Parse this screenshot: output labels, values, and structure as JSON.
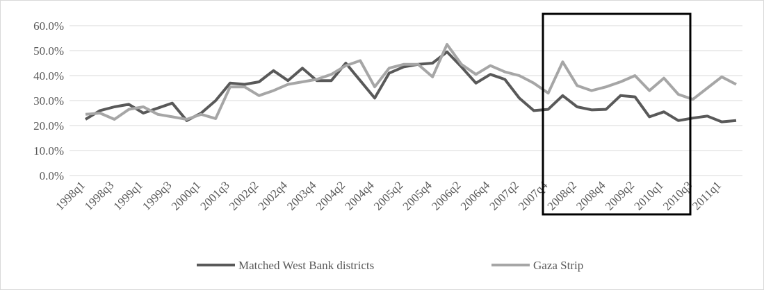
{
  "chart_data": {
    "type": "line",
    "categories": [
      "1998q1",
      null,
      "1998q3",
      null,
      "1999q1",
      null,
      "1999q3",
      null,
      "2000q1",
      null,
      "2001q3",
      null,
      "2002q2",
      null,
      "2002q4",
      null,
      "2003q4",
      null,
      "2004q2",
      null,
      "2004q4",
      null,
      "2005q2",
      null,
      "2005q4",
      null,
      "2006q2",
      null,
      "2006q4",
      null,
      "2007q2",
      null,
      "2007q4",
      null,
      "2008q2",
      null,
      "2008q4",
      null,
      "2009q2",
      null,
      "2010q1",
      null,
      "2010q3",
      null,
      "2011q1",
      null
    ],
    "series": [
      {
        "name": "Matched West Bank districts",
        "color": "#595959",
        "values": [
          22.5,
          26,
          27.5,
          28.5,
          25,
          27,
          29,
          22,
          25,
          30,
          37,
          36.5,
          37.5,
          42,
          38,
          43,
          38,
          38,
          45,
          38,
          31,
          41,
          43.5,
          44.5,
          45,
          49.5,
          43.5,
          37,
          40.5,
          38.5,
          31,
          26,
          26.5,
          32,
          27.5,
          26.3,
          26.5,
          32,
          31.5,
          23.5,
          25.5,
          22,
          23,
          23.8,
          21.5,
          22
        ]
      },
      {
        "name": "Gaza Strip",
        "color": "#a6a6a6",
        "values": [
          24.5,
          25,
          22.5,
          26.5,
          27.5,
          24.5,
          23.5,
          22.5,
          24.5,
          22.8,
          35.5,
          35.5,
          32,
          34,
          36.5,
          37.5,
          38.5,
          40.5,
          44,
          46,
          35.5,
          43,
          44.5,
          44.5,
          39.5,
          52.5,
          44.5,
          40.5,
          44,
          41.5,
          40,
          37,
          33,
          45.5,
          36,
          34,
          35.5,
          37.5,
          40,
          34,
          39,
          32.5,
          30.5,
          35,
          39.5,
          36.5
        ]
      }
    ],
    "ylim": [
      0,
      60
    ],
    "yticks": [
      {
        "value": 0,
        "label": "0.0%"
      },
      {
        "value": 10,
        "label": "10.0%"
      },
      {
        "value": 20,
        "label": "20.0%"
      },
      {
        "value": 30,
        "label": "30.0%"
      },
      {
        "value": 40,
        "label": "40.0%"
      },
      {
        "value": 50,
        "label": "50.0%"
      },
      {
        "value": 60,
        "label": "60.0%"
      }
    ],
    "grid": true,
    "legend": "bottom"
  }
}
